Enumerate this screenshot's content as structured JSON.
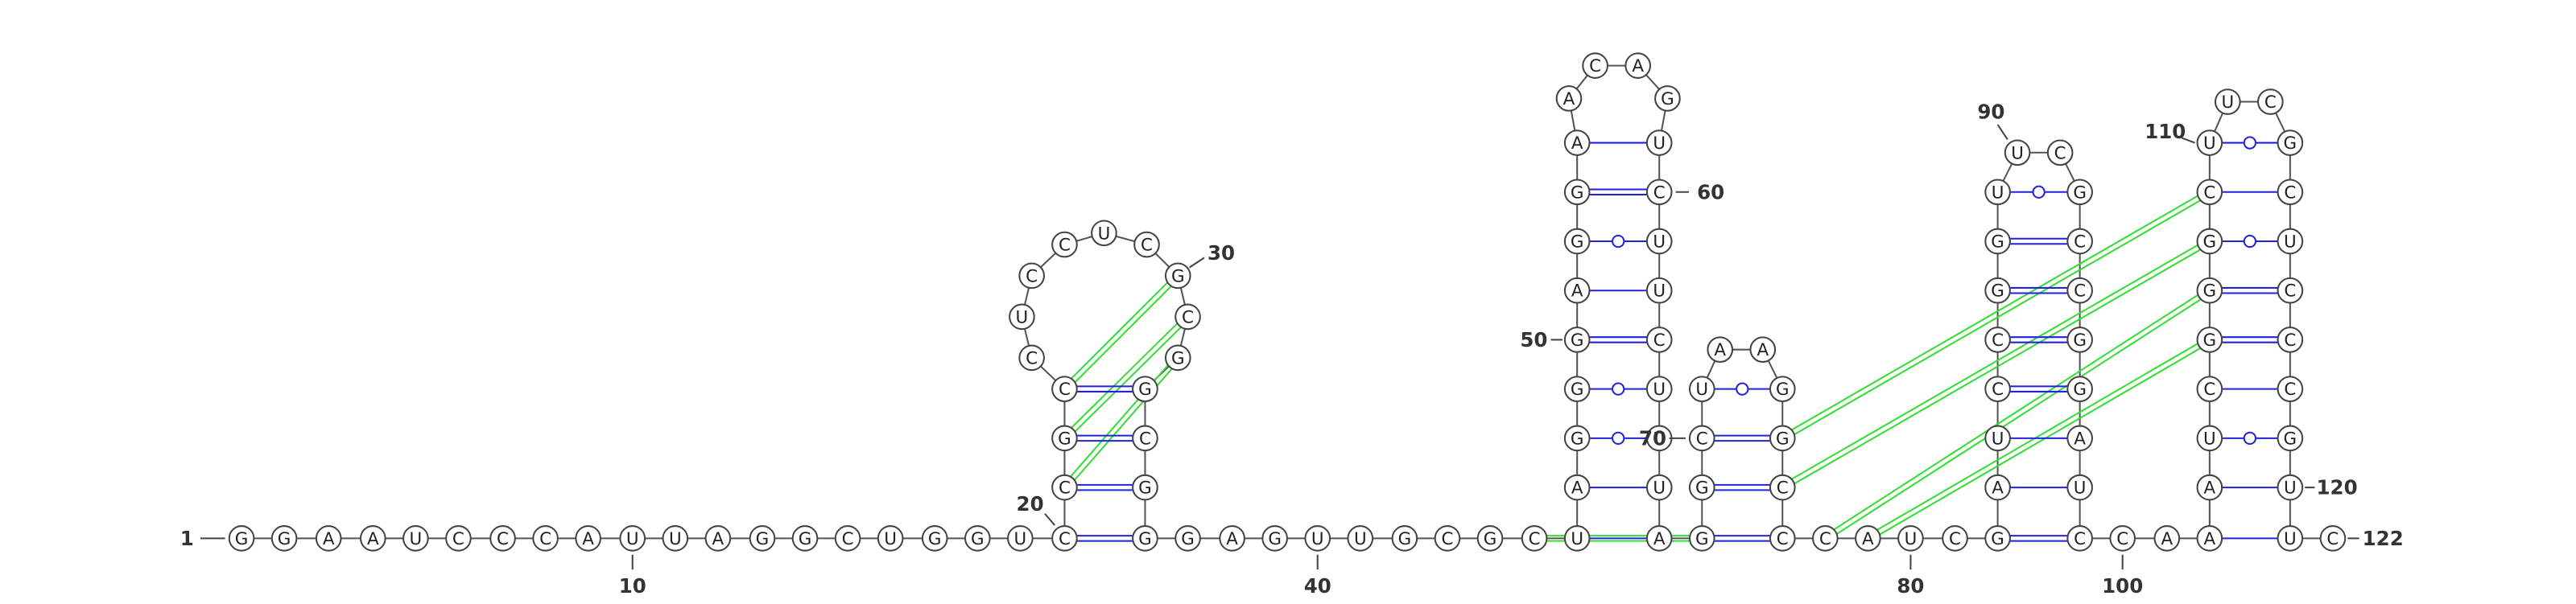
{
  "sequence": [
    "G",
    "G",
    "A",
    "A",
    "U",
    "C",
    "C",
    "C",
    "A",
    "U",
    "U",
    "A",
    "G",
    "G",
    "C",
    "U",
    "G",
    "G",
    "U",
    "C",
    "C",
    "G",
    "C",
    "C",
    "U",
    "C",
    "C",
    "U",
    "C",
    "G",
    "C",
    "G",
    "G",
    "C",
    "G",
    "G",
    "G",
    "A",
    "G",
    "U",
    "U",
    "G",
    "C",
    "G",
    "C",
    "U",
    "A",
    "G",
    "G",
    "G",
    "A",
    "G",
    "G",
    "A",
    "A",
    "C",
    "A",
    "G",
    "U",
    "C",
    "U",
    "U",
    "C",
    "U",
    "U",
    "U",
    "A",
    "G",
    "G",
    "C",
    "U",
    "A",
    "A",
    "G",
    "G",
    "C",
    "C",
    "C",
    "A",
    "U",
    "C",
    "G",
    "A",
    "U",
    "C",
    "C",
    "G",
    "G",
    "U",
    "U",
    "C",
    "G",
    "C",
    "C",
    "G",
    "G",
    "A",
    "U",
    "C",
    "C",
    "A",
    "A",
    "A",
    "U",
    "C",
    "G",
    "G",
    "G",
    "C",
    "U",
    "U",
    "C",
    "G",
    "C",
    "U",
    "C",
    "C",
    "C",
    "G",
    "U",
    "U",
    "C"
  ],
  "position_labels": [
    1,
    10,
    20,
    30,
    40,
    50,
    60,
    70,
    80,
    90,
    100,
    110,
    120,
    122
  ]
}
